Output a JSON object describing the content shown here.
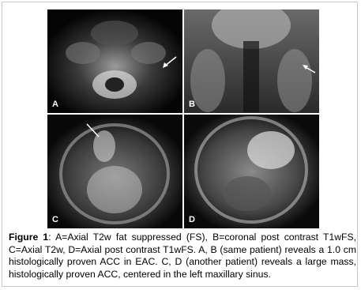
{
  "figure": {
    "panels": [
      {
        "label": "A"
      },
      {
        "label": "B"
      },
      {
        "label": "C"
      },
      {
        "label": "D"
      }
    ],
    "caption": {
      "label": "Figure 1",
      "text": ": A=Axial T2w fat suppressed (FS), B=coronal post contrast T1wFS, C=Axial T2w, D=Axial post contrast T1wFS. A, B (same patient) reveals a 1.0 cm histologically proven ACC in EAC. C, D (another patient) reveals a large mass, histologically proven ACC, centered in the left maxillary sinus."
    }
  }
}
